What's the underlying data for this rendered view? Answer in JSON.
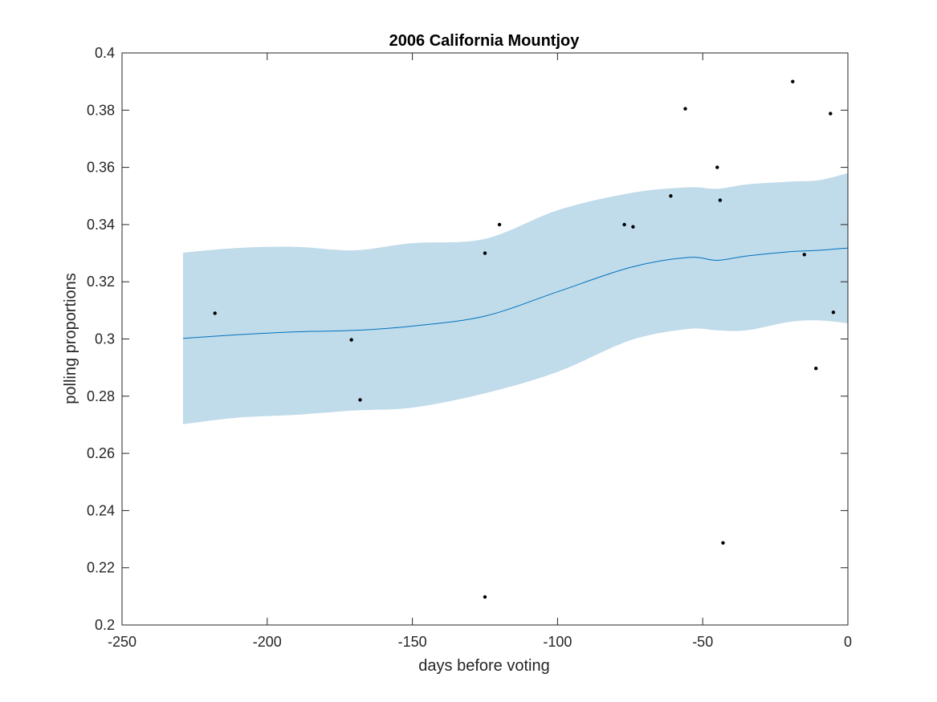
{
  "chart_data": {
    "type": "line",
    "title": "2006 California Mountjoy",
    "xlabel": "days before voting",
    "ylabel": "polling proportions",
    "xlim": [
      -250,
      0
    ],
    "ylim": [
      0.2,
      0.4
    ],
    "grid": false,
    "xticks": [
      -250,
      -200,
      -150,
      -100,
      -50,
      0
    ],
    "xtick_labels": [
      "-250",
      "-200",
      "-150",
      "-100",
      "-50",
      "0"
    ],
    "yticks": [
      0.2,
      0.22,
      0.24,
      0.26,
      0.28,
      0.3,
      0.32,
      0.34,
      0.36,
      0.38,
      0.4
    ],
    "ytick_labels": [
      "0.2",
      "0.22",
      "0.24",
      "0.26",
      "0.28",
      "0.3",
      "0.32",
      "0.34",
      "0.36",
      "0.38",
      "0.4"
    ],
    "band": {
      "x": [
        -229,
        -210,
        -190,
        -170,
        -150,
        -125,
        -100,
        -75,
        -55,
        -45,
        -35,
        -20,
        -10,
        0
      ],
      "upper": [
        0.3302,
        0.3318,
        0.3322,
        0.331,
        0.3335,
        0.335,
        0.345,
        0.351,
        0.353,
        0.3525,
        0.354,
        0.355,
        0.3555,
        0.358
      ],
      "lower": [
        0.2702,
        0.2725,
        0.2735,
        0.275,
        0.276,
        0.281,
        0.2885,
        0.2995,
        0.3035,
        0.303,
        0.303,
        0.306,
        0.3065,
        0.3055
      ],
      "color": "#c0dbea"
    },
    "series": [
      {
        "x": [
          -229,
          -210,
          -190,
          -170,
          -150,
          -125,
          -100,
          -75,
          -55,
          -45,
          -35,
          -20,
          -10,
          0
        ],
        "values": [
          0.3002,
          0.3015,
          0.3025,
          0.303,
          0.3045,
          0.308,
          0.3165,
          0.325,
          0.3285,
          0.3275,
          0.329,
          0.3305,
          0.331,
          0.3318
        ],
        "color": "#0072bd"
      }
    ],
    "points": {
      "x": [
        -218,
        -171,
        -168,
        -125,
        -125,
        -120,
        -77,
        -74,
        -61,
        -56,
        -45,
        -44,
        -43,
        -19,
        -15,
        -11,
        -6,
        -5
      ],
      "y": [
        0.309,
        0.2997,
        0.2787,
        0.33,
        0.2098,
        0.34,
        0.34,
        0.3392,
        0.35,
        0.3805,
        0.36,
        0.3485,
        0.2287,
        0.39,
        0.3295,
        0.2897,
        0.3788,
        0.3093
      ],
      "color": "#000000"
    }
  }
}
